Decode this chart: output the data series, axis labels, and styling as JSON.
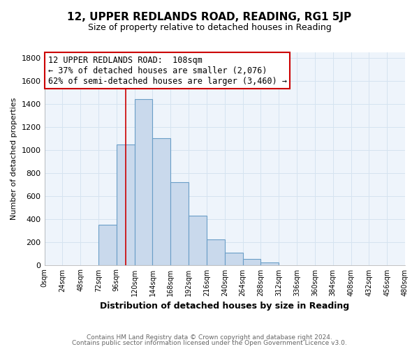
{
  "title": "12, UPPER REDLANDS ROAD, READING, RG1 5JP",
  "subtitle": "Size of property relative to detached houses in Reading",
  "xlabel": "Distribution of detached houses by size in Reading",
  "ylabel": "Number of detached properties",
  "bar_data": {
    "bin_edges": [
      0,
      24,
      48,
      72,
      96,
      120,
      144,
      168,
      192,
      216,
      240,
      264,
      288,
      312,
      336,
      360,
      384,
      408,
      432,
      456,
      480
    ],
    "counts": [
      0,
      0,
      0,
      350,
      1050,
      1440,
      1100,
      720,
      430,
      220,
      105,
      55,
      20,
      0,
      0,
      0,
      0,
      0,
      0,
      0
    ]
  },
  "bar_color": "#c9d9ec",
  "bar_edge_color": "#6a9ec7",
  "vline_x": 108,
  "vline_color": "#cc0000",
  "annotation_lines": [
    "12 UPPER REDLANDS ROAD:  108sqm",
    "← 37% of detached houses are smaller (2,076)",
    "62% of semi-detached houses are larger (3,460) →"
  ],
  "annotation_fontsize": 8.5,
  "annotation_edge_color": "#cc0000",
  "annotation_face_color": "#ffffff",
  "tick_labels": [
    "0sqm",
    "24sqm",
    "48sqm",
    "72sqm",
    "96sqm",
    "120sqm",
    "144sqm",
    "168sqm",
    "192sqm",
    "216sqm",
    "240sqm",
    "264sqm",
    "288sqm",
    "312sqm",
    "336sqm",
    "360sqm",
    "384sqm",
    "408sqm",
    "432sqm",
    "456sqm",
    "480sqm"
  ],
  "ylim": [
    0,
    1850
  ],
  "yticks": [
    0,
    200,
    400,
    600,
    800,
    1000,
    1200,
    1400,
    1600,
    1800
  ],
  "footer1": "Contains HM Land Registry data © Crown copyright and database right 2024.",
  "footer2": "Contains public sector information licensed under the Open Government Licence v3.0.",
  "grid_color": "#d5e3f0",
  "fig_bg_color": "#ffffff",
  "plot_bg_color": "#eef4fb",
  "title_fontsize": 11,
  "subtitle_fontsize": 9,
  "xlabel_fontsize": 9,
  "ylabel_fontsize": 8,
  "footer_fontsize": 6.5,
  "footer_color": "#666666"
}
